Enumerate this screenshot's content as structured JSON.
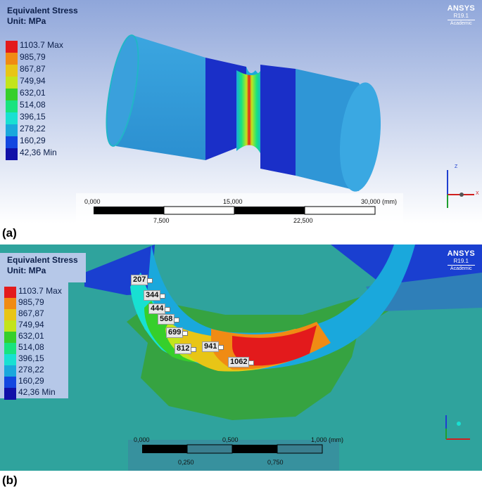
{
  "panel_a": {
    "title": "Equivalent Stress",
    "unit": "Unit: MPa",
    "legend": [
      {
        "label": "1103.7 Max",
        "color": "#e31a1c"
      },
      {
        "label": "985,79",
        "color": "#f08b14"
      },
      {
        "label": "867,87",
        "color": "#e8c516"
      },
      {
        "label": "749,94",
        "color": "#c3e41c"
      },
      {
        "label": "632,01",
        "color": "#36cf2b"
      },
      {
        "label": "514,08",
        "color": "#18e37f"
      },
      {
        "label": "396,15",
        "color": "#18e0d2"
      },
      {
        "label": "278,22",
        "color": "#1aa8dc"
      },
      {
        "label": "160,29",
        "color": "#1247e0"
      },
      {
        "label": "42,36 Min",
        "color": "#1010a8"
      }
    ],
    "ansys": {
      "brand": "ANSYS",
      "version": "R19.1",
      "edition": "Academic"
    },
    "scale": {
      "top": [
        "0,000",
        "15,000",
        "30,000 (mm)"
      ],
      "bottom": [
        "7,500",
        "22,500"
      ]
    },
    "axes": {
      "z": "Z",
      "x": "X"
    },
    "caption": "(a)"
  },
  "panel_b": {
    "title": "Equivalent Stress",
    "unit": "Unit: MPa",
    "legend": [
      {
        "label": "1103.7 Max",
        "color": "#e31a1c"
      },
      {
        "label": "985,79",
        "color": "#f08b14"
      },
      {
        "label": "867,87",
        "color": "#e8c516"
      },
      {
        "label": "749,94",
        "color": "#c3e41c"
      },
      {
        "label": "632,01",
        "color": "#36cf2b"
      },
      {
        "label": "514,08",
        "color": "#18e37f"
      },
      {
        "label": "396,15",
        "color": "#18e0d2"
      },
      {
        "label": "278,22",
        "color": "#1aa8dc"
      },
      {
        "label": "160,29",
        "color": "#1247e0"
      },
      {
        "label": "42,36 Min",
        "color": "#1010a8"
      }
    ],
    "ansys": {
      "brand": "ANSYS",
      "version": "R19.1",
      "edition": "Academic"
    },
    "probes": [
      "207",
      "344",
      "444",
      "568",
      "699",
      "812",
      "941",
      "1062"
    ],
    "scale": {
      "top": [
        "0,000",
        "0,500",
        "1,000 (mm)"
      ],
      "bottom": [
        "0,250",
        "0,750"
      ]
    },
    "caption": "(b)"
  }
}
